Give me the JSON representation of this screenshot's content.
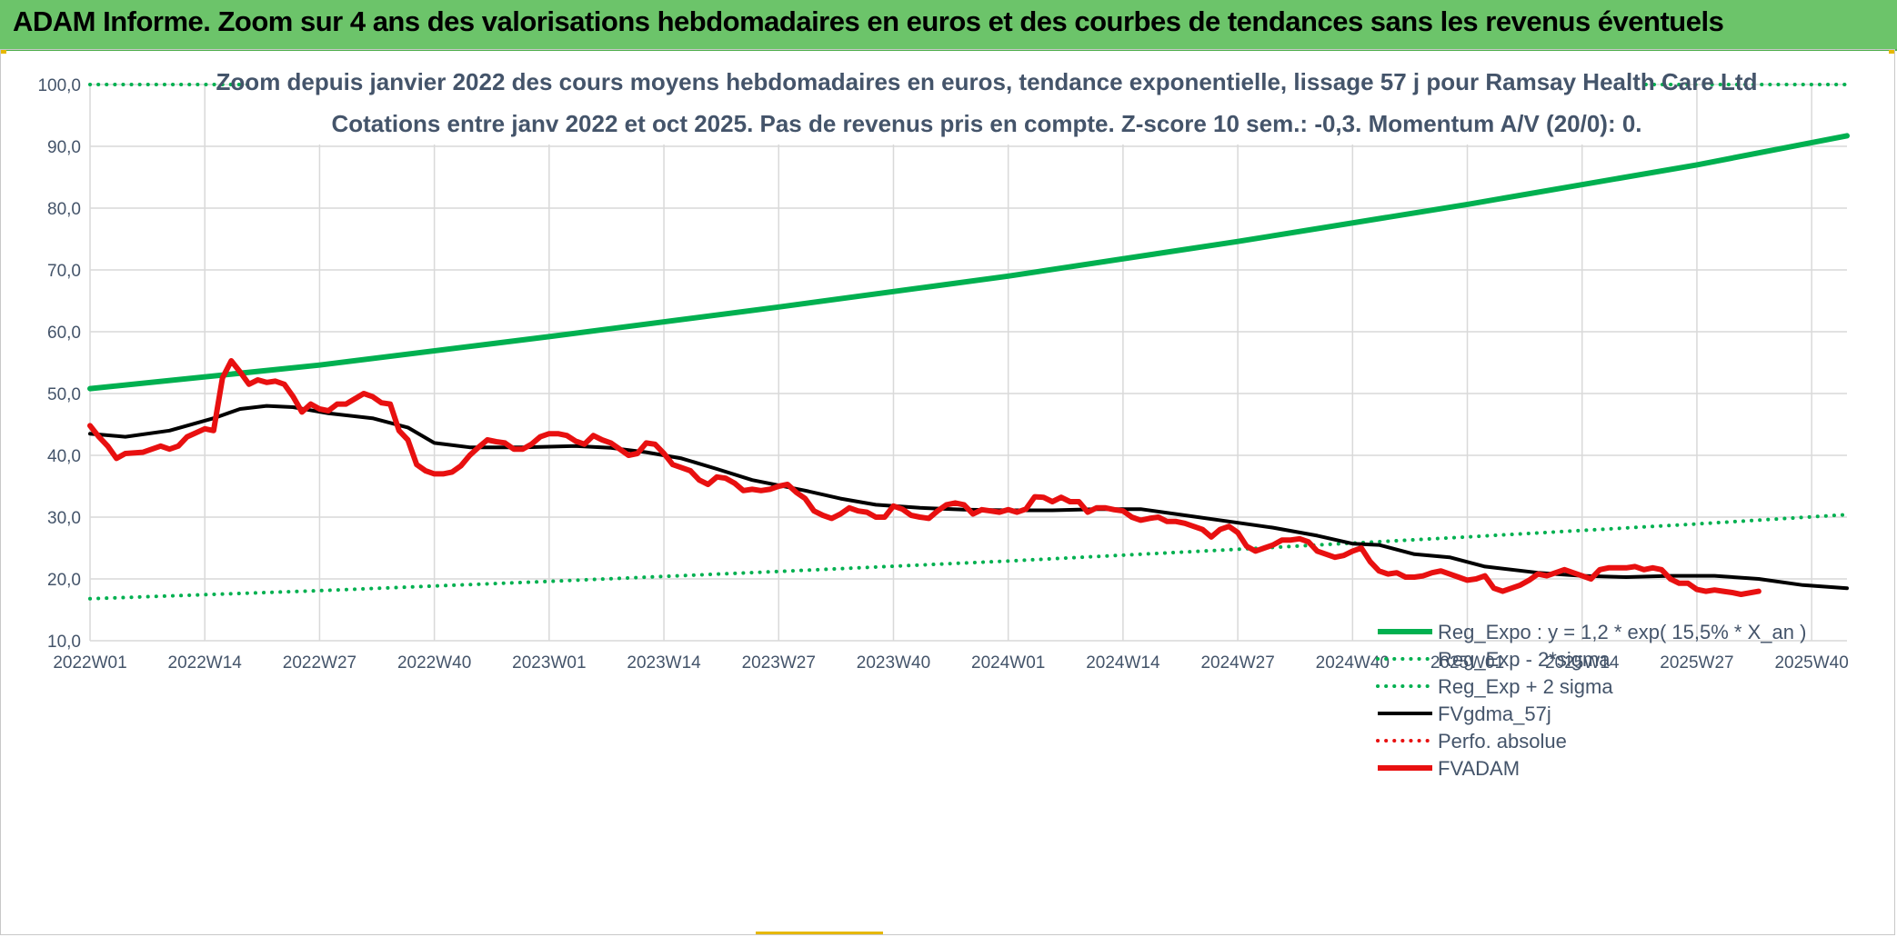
{
  "header": {
    "title": "ADAM Informe. Zoom sur 4 ans des valorisations hebdomadaires en euros et des courbes de tendances sans les revenus éventuels"
  },
  "chart_data": {
    "type": "line",
    "title_line1": "Zoom depuis janvier 2022 des cours moyens hebdomadaires en euros, tendance exponentielle, lissage 57 j pour Ramsay Health Care Ltd",
    "title_line2": "Cotations entre janv 2022 et oct 2025. Pas de revenus pris en compte. Z-score 10 sem.: -0,3. Momentum A/V (20/0): 0.",
    "ylim": [
      10,
      100
    ],
    "y_ticks": [
      "10,0",
      "20,0",
      "30,0",
      "40,0",
      "50,0",
      "60,0",
      "70,0",
      "80,0",
      "90,0",
      "100,0"
    ],
    "x_range": [
      1,
      200
    ],
    "x_ticks": [
      {
        "label": "2022W01",
        "x": 1
      },
      {
        "label": "2022W14",
        "x": 14
      },
      {
        "label": "2022W27",
        "x": 27
      },
      {
        "label": "2022W40",
        "x": 40
      },
      {
        "label": "2023W01",
        "x": 53
      },
      {
        "label": "2023W14",
        "x": 66
      },
      {
        "label": "2023W27",
        "x": 79
      },
      {
        "label": "2023W40",
        "x": 92
      },
      {
        "label": "2024W01",
        "x": 105
      },
      {
        "label": "2024W14",
        "x": 118
      },
      {
        "label": "2024W27",
        "x": 131
      },
      {
        "label": "2024W40",
        "x": 144
      },
      {
        "label": "2025W01",
        "x": 157
      },
      {
        "label": "2025W14",
        "x": 170
      },
      {
        "label": "2025W27",
        "x": 183
      },
      {
        "label": "2025W40",
        "x": 196
      }
    ],
    "series": [
      {
        "name": "Reg_Expo : y = 1,2 * exp( 15,5% *  X_an )",
        "color": "#00b050",
        "style": "solid",
        "width": 6,
        "points": [
          [
            1,
            50.8
          ],
          [
            27,
            54.6
          ],
          [
            53,
            59.2
          ],
          [
            79,
            64.0
          ],
          [
            105,
            69.0
          ],
          [
            131,
            74.6
          ],
          [
            157,
            80.6
          ],
          [
            183,
            87.0
          ],
          [
            200,
            91.7
          ]
        ]
      },
      {
        "name": "Reg_Exp - 2*sigma",
        "color": "#00b050",
        "style": "dotted",
        "width": 4,
        "points": [
          [
            1,
            16.8
          ],
          [
            27,
            18.1
          ],
          [
            53,
            19.6
          ],
          [
            79,
            21.2
          ],
          [
            105,
            22.9
          ],
          [
            131,
            24.8
          ],
          [
            157,
            26.8
          ],
          [
            183,
            28.9
          ],
          [
            200,
            30.4
          ]
        ]
      },
      {
        "name": "Reg_Exp + 2 sigma",
        "color": "#00b050",
        "style": "dotted",
        "width": 4,
        "points": [
          [
            1,
            100.0
          ],
          [
            20,
            100.0
          ],
          [
            183,
            100.0
          ],
          [
            200,
            100.0
          ]
        ]
      },
      {
        "name": "FVgdma_57j",
        "color": "#000000",
        "style": "solid",
        "width": 4,
        "points": [
          [
            1,
            43.5
          ],
          [
            5,
            43.0
          ],
          [
            10,
            44.0
          ],
          [
            15,
            46.0
          ],
          [
            18,
            47.5
          ],
          [
            21,
            48.0
          ],
          [
            24,
            47.8
          ],
          [
            28,
            46.8
          ],
          [
            33,
            46.0
          ],
          [
            37,
            44.5
          ],
          [
            40,
            42.0
          ],
          [
            44,
            41.3
          ],
          [
            50,
            41.3
          ],
          [
            56,
            41.5
          ],
          [
            60,
            41.2
          ],
          [
            64,
            40.5
          ],
          [
            68,
            39.5
          ],
          [
            72,
            37.8
          ],
          [
            76,
            36.0
          ],
          [
            82,
            34.3
          ],
          [
            86,
            33.0
          ],
          [
            90,
            32.0
          ],
          [
            95,
            31.5
          ],
          [
            100,
            31.2
          ],
          [
            105,
            31.1
          ],
          [
            110,
            31.1
          ],
          [
            115,
            31.3
          ],
          [
            120,
            31.3
          ],
          [
            125,
            30.3
          ],
          [
            130,
            29.3
          ],
          [
            135,
            28.3
          ],
          [
            140,
            27.0
          ],
          [
            144,
            25.7
          ],
          [
            147,
            25.5
          ],
          [
            151,
            24.0
          ],
          [
            155,
            23.5
          ],
          [
            159,
            22.0
          ],
          [
            165,
            21.0
          ],
          [
            170,
            20.5
          ],
          [
            175,
            20.3
          ],
          [
            180,
            20.5
          ],
          [
            185,
            20.5
          ],
          [
            190,
            20.0
          ],
          [
            195,
            19.0
          ],
          [
            200,
            18.5
          ]
        ]
      },
      {
        "name": "Perfo. absolue",
        "color": "#e81010",
        "style": "dotted",
        "width": 4,
        "points": []
      },
      {
        "name": "FVADAM",
        "color": "#e81010",
        "style": "solid",
        "width": 6,
        "points": [
          [
            1,
            44.8
          ],
          [
            2,
            43.0
          ],
          [
            3,
            41.5
          ],
          [
            4,
            39.5
          ],
          [
            5,
            40.3
          ],
          [
            7,
            40.5
          ],
          [
            9,
            41.5
          ],
          [
            10,
            41.0
          ],
          [
            11,
            41.5
          ],
          [
            12,
            43.0
          ],
          [
            14,
            44.3
          ],
          [
            15,
            44.0
          ],
          [
            16,
            52.5
          ],
          [
            17,
            55.3
          ],
          [
            18,
            53.5
          ],
          [
            19,
            51.5
          ],
          [
            20,
            52.2
          ],
          [
            21,
            51.8
          ],
          [
            22,
            52.0
          ],
          [
            23,
            51.5
          ],
          [
            24,
            49.5
          ],
          [
            25,
            47.0
          ],
          [
            26,
            48.3
          ],
          [
            27,
            47.5
          ],
          [
            28,
            47.2
          ],
          [
            29,
            48.3
          ],
          [
            30,
            48.3
          ],
          [
            32,
            50.0
          ],
          [
            33,
            49.5
          ],
          [
            34,
            48.5
          ],
          [
            35,
            48.3
          ],
          [
            36,
            44.0
          ],
          [
            37,
            42.5
          ],
          [
            38,
            38.5
          ],
          [
            39,
            37.5
          ],
          [
            40,
            37.0
          ],
          [
            41,
            37.0
          ],
          [
            42,
            37.3
          ],
          [
            43,
            38.3
          ],
          [
            44,
            40.0
          ],
          [
            45,
            41.3
          ],
          [
            46,
            42.5
          ],
          [
            47,
            42.2
          ],
          [
            48,
            42.0
          ],
          [
            49,
            41.0
          ],
          [
            50,
            41.0
          ],
          [
            51,
            41.8
          ],
          [
            52,
            43.0
          ],
          [
            53,
            43.5
          ],
          [
            54,
            43.5
          ],
          [
            55,
            43.2
          ],
          [
            56,
            42.3
          ],
          [
            57,
            41.8
          ],
          [
            58,
            43.2
          ],
          [
            59,
            42.5
          ],
          [
            60,
            42.0
          ],
          [
            61,
            41.0
          ],
          [
            62,
            40.0
          ],
          [
            63,
            40.3
          ],
          [
            64,
            42.0
          ],
          [
            65,
            41.8
          ],
          [
            66,
            40.3
          ],
          [
            67,
            38.5
          ],
          [
            68,
            38.0
          ],
          [
            69,
            37.5
          ],
          [
            70,
            36.0
          ],
          [
            71,
            35.3
          ],
          [
            72,
            36.5
          ],
          [
            73,
            36.3
          ],
          [
            74,
            35.5
          ],
          [
            75,
            34.3
          ],
          [
            76,
            34.5
          ],
          [
            77,
            34.3
          ],
          [
            78,
            34.5
          ],
          [
            79,
            35.0
          ],
          [
            80,
            35.3
          ],
          [
            81,
            34.0
          ],
          [
            82,
            33.0
          ],
          [
            83,
            31.0
          ],
          [
            84,
            30.3
          ],
          [
            85,
            29.8
          ],
          [
            86,
            30.5
          ],
          [
            87,
            31.5
          ],
          [
            88,
            31.0
          ],
          [
            89,
            30.8
          ],
          [
            90,
            30.0
          ],
          [
            91,
            30.0
          ],
          [
            92,
            31.8
          ],
          [
            93,
            31.3
          ],
          [
            94,
            30.3
          ],
          [
            95,
            30.0
          ],
          [
            96,
            29.8
          ],
          [
            97,
            31.0
          ],
          [
            98,
            32.0
          ],
          [
            99,
            32.3
          ],
          [
            100,
            32.0
          ],
          [
            101,
            30.5
          ],
          [
            102,
            31.2
          ],
          [
            103,
            31.0
          ],
          [
            104,
            30.8
          ],
          [
            105,
            31.2
          ],
          [
            106,
            30.8
          ],
          [
            107,
            31.3
          ],
          [
            108,
            33.3
          ],
          [
            109,
            33.2
          ],
          [
            110,
            32.5
          ],
          [
            111,
            33.2
          ],
          [
            112,
            32.5
          ],
          [
            113,
            32.5
          ],
          [
            114,
            30.8
          ],
          [
            115,
            31.5
          ],
          [
            116,
            31.5
          ],
          [
            117,
            31.2
          ],
          [
            118,
            31.0
          ],
          [
            119,
            30.0
          ],
          [
            120,
            29.5
          ],
          [
            121,
            29.8
          ],
          [
            122,
            30.0
          ],
          [
            123,
            29.3
          ],
          [
            124,
            29.3
          ],
          [
            125,
            29.0
          ],
          [
            126,
            28.5
          ],
          [
            127,
            28.0
          ],
          [
            128,
            26.8
          ],
          [
            129,
            28.0
          ],
          [
            130,
            28.5
          ],
          [
            131,
            27.5
          ],
          [
            132,
            25.3
          ],
          [
            133,
            24.5
          ],
          [
            134,
            25.0
          ],
          [
            135,
            25.5
          ],
          [
            136,
            26.3
          ],
          [
            137,
            26.3
          ],
          [
            138,
            26.5
          ],
          [
            139,
            26.0
          ],
          [
            140,
            24.5
          ],
          [
            141,
            24.0
          ],
          [
            142,
            23.5
          ],
          [
            143,
            23.8
          ],
          [
            144,
            24.5
          ],
          [
            145,
            25.0
          ],
          [
            146,
            22.8
          ],
          [
            147,
            21.3
          ],
          [
            148,
            20.8
          ],
          [
            149,
            21.0
          ],
          [
            150,
            20.3
          ],
          [
            151,
            20.3
          ],
          [
            152,
            20.5
          ],
          [
            153,
            21.0
          ],
          [
            154,
            21.3
          ],
          [
            155,
            20.8
          ],
          [
            156,
            20.3
          ],
          [
            157,
            19.8
          ],
          [
            158,
            20.0
          ],
          [
            159,
            20.5
          ],
          [
            160,
            18.5
          ],
          [
            161,
            18.0
          ],
          [
            162,
            18.5
          ],
          [
            163,
            19.0
          ],
          [
            164,
            19.8
          ],
          [
            165,
            20.8
          ],
          [
            166,
            20.5
          ],
          [
            167,
            21.0
          ],
          [
            168,
            21.5
          ],
          [
            169,
            21.0
          ],
          [
            170,
            20.5
          ],
          [
            171,
            20.0
          ],
          [
            172,
            21.5
          ],
          [
            173,
            21.8
          ],
          [
            174,
            21.8
          ],
          [
            175,
            21.8
          ],
          [
            176,
            22.0
          ],
          [
            177,
            21.5
          ],
          [
            178,
            21.8
          ],
          [
            179,
            21.5
          ],
          [
            180,
            20.0
          ],
          [
            181,
            19.3
          ],
          [
            182,
            19.3
          ],
          [
            183,
            18.3
          ],
          [
            184,
            18.0
          ],
          [
            185,
            18.2
          ],
          [
            186,
            18.0
          ],
          [
            187,
            17.8
          ],
          [
            188,
            17.5
          ],
          [
            190,
            18.0
          ]
        ]
      }
    ],
    "legend_order": [
      0,
      1,
      2,
      3,
      4,
      5
    ],
    "legend_position": "bottom-right"
  }
}
